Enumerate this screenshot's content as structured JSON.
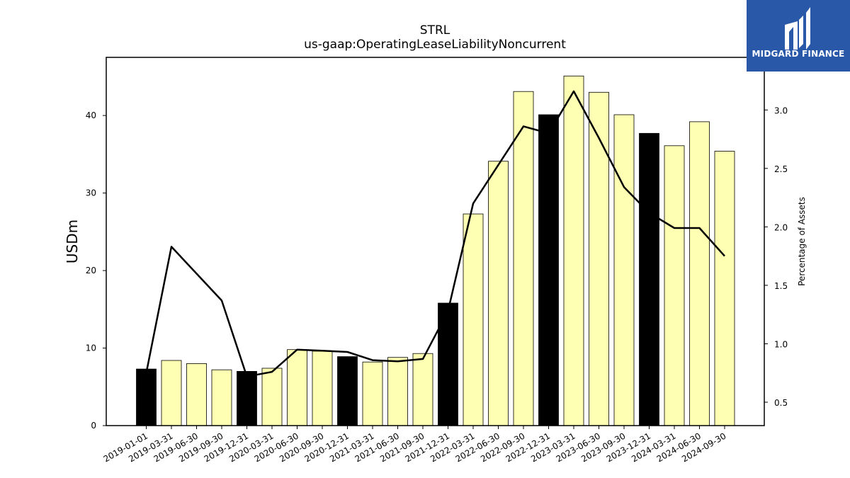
{
  "brand": {
    "name": "MIDGARD FINANCE",
    "color": "#2a58a8"
  },
  "chart_data": {
    "type": "bar",
    "title": "STRL",
    "subtitle": "us-gaap:OperatingLeaseLiabilityNoncurrent",
    "ylabel": "USDm",
    "y2label": "Percentage of Assets",
    "ylim": [
      0,
      47.5
    ],
    "y2lim": [
      0.3,
      3.45
    ],
    "yticks": [
      0,
      10,
      20,
      30,
      40
    ],
    "y2ticks": [
      0.5,
      1.0,
      1.5,
      2.0,
      2.5,
      3.0
    ],
    "grid": false,
    "categories": [
      "2019-01-01",
      "2019-03-31",
      "2019-06-30",
      "2019-09-30",
      "2019-12-31",
      "2020-03-31",
      "2020-06-30",
      "2020-09-30",
      "2020-12-31",
      "2021-03-31",
      "2021-06-30",
      "2021-09-30",
      "2021-12-31",
      "2022-03-31",
      "2022-06-30",
      "2022-09-30",
      "2022-12-31",
      "2023-03-31",
      "2023-06-30",
      "2023-09-30",
      "2023-12-31",
      "2024-03-31",
      "2024-06-30",
      "2024-09-30"
    ],
    "series": [
      {
        "type": "bar",
        "values": [
          7.3,
          8.4,
          8.0,
          7.2,
          7.0,
          7.4,
          9.8,
          9.6,
          8.9,
          8.2,
          8.8,
          9.3,
          15.8,
          27.3,
          34.1,
          43.1,
          40.1,
          45.1,
          43.0,
          40.1,
          37.7,
          36.1,
          39.2,
          35.4
        ],
        "highlight": [
          true,
          false,
          false,
          false,
          true,
          false,
          false,
          false,
          true,
          false,
          false,
          false,
          true,
          false,
          false,
          false,
          true,
          false,
          false,
          false,
          true,
          false,
          false,
          false
        ]
      },
      {
        "type": "line",
        "axis": "right",
        "values": [
          0.75,
          1.83,
          1.6,
          1.37,
          0.72,
          0.76,
          0.95,
          0.94,
          0.93,
          0.86,
          0.85,
          0.87,
          1.28,
          2.2,
          2.53,
          2.86,
          2.8,
          3.16,
          2.76,
          2.34,
          2.12,
          1.99,
          1.99,
          1.75
        ]
      }
    ],
    "colors": {
      "bar_fill": "#ffffb3",
      "bar_highlight": "#000000",
      "bar_edge": "#000000",
      "line": "#000000"
    }
  }
}
